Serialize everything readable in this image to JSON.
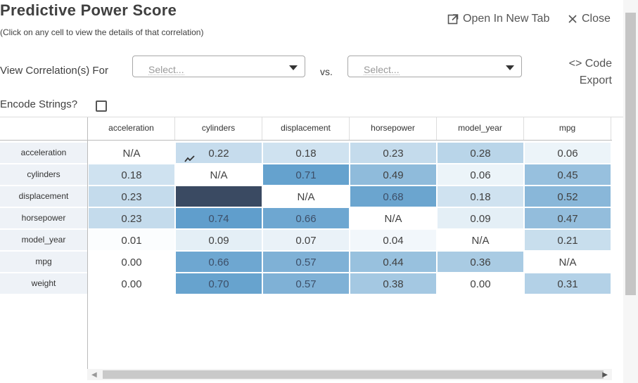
{
  "header": {
    "title": "Predictive Power Score",
    "subtitle": "(Click on any cell to view the details of that correlation)",
    "open_new_tab": "Open In New Tab",
    "close": "Close"
  },
  "controls": {
    "view_label": "View Correlation(s) For",
    "select1_placeholder": "Select...",
    "vs_label": "vs.",
    "select2_placeholder": "Select...",
    "code_label": "Code",
    "export_label": "Export",
    "encode_label": "Encode Strings?",
    "encode_checked": false
  },
  "icons": {
    "open_tab": "external-link-icon",
    "close": "close-icon",
    "code": "code-icon",
    "trend": "trend-line-icon",
    "caret": "caret-down-icon"
  },
  "grid": {
    "columns": [
      "acceleration",
      "cylinders",
      "displacement",
      "horsepower",
      "model_year",
      "mpg"
    ],
    "rows": [
      {
        "name": "acceleration",
        "values": [
          "N/A",
          "0.22",
          "0.18",
          "0.23",
          "0.28",
          "0.06"
        ]
      },
      {
        "name": "cylinders",
        "values": [
          "0.18",
          "N/A",
          "0.71",
          "0.49",
          "0.06",
          "0.45"
        ]
      },
      {
        "name": "displacement",
        "values": [
          "0.23",
          "",
          "N/A",
          "0.68",
          "0.18",
          "0.52"
        ]
      },
      {
        "name": "horsepower",
        "values": [
          "0.23",
          "0.74",
          "0.66",
          "N/A",
          "0.09",
          "0.47"
        ]
      },
      {
        "name": "model_year",
        "values": [
          "0.01",
          "0.09",
          "0.07",
          "0.04",
          "N/A",
          "0.21"
        ]
      },
      {
        "name": "mpg",
        "values": [
          "0.00",
          "0.66",
          "0.57",
          "0.44",
          "0.36",
          "N/A"
        ]
      },
      {
        "name": "weight",
        "values": [
          "0.00",
          "0.70",
          "0.57",
          "0.38",
          "0.00",
          "0.31"
        ]
      }
    ],
    "selected_cell_color": "#3a4a62"
  }
}
